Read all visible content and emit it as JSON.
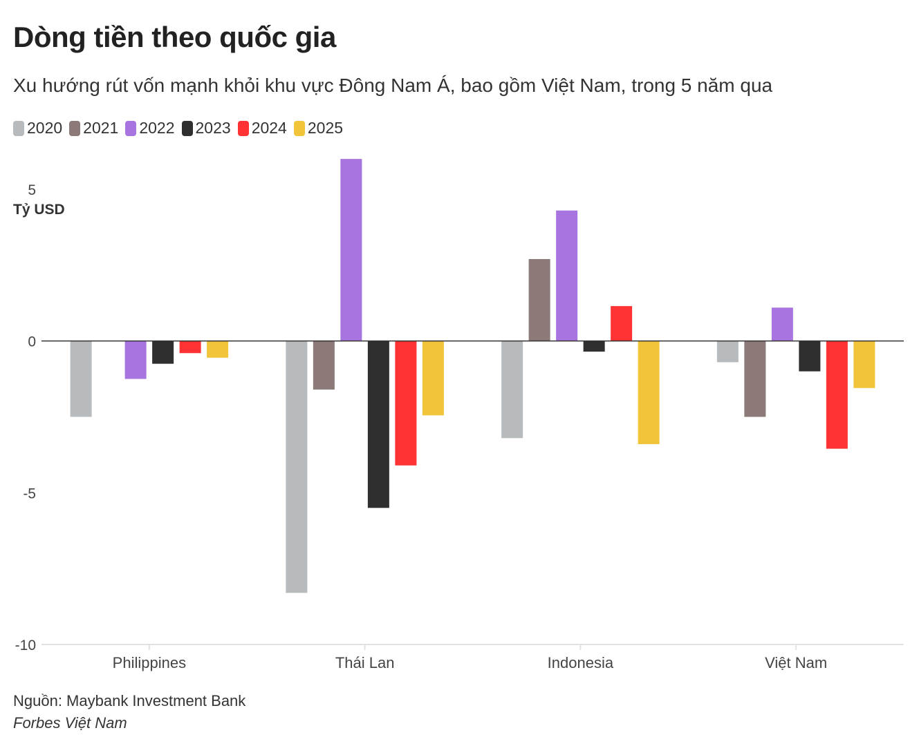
{
  "header": {
    "title": "Dòng tiền theo quốc gia",
    "subtitle": "Xu hướng rút vốn mạnh khỏi khu vực Đông Nam Á, bao gồm Việt Nam, trong 5 năm qua"
  },
  "footer": {
    "source": "Nguồn: Maybank Investment Bank",
    "publisher": "Forbes Việt Nam"
  },
  "chart_data": {
    "type": "bar",
    "title": "Dòng tiền theo quốc gia",
    "subtitle": "Xu hướng rút vốn mạnh khỏi khu vực Đông Nam Á, bao gồm Việt Nam, trong 5 năm qua",
    "xlabel": "",
    "ylabel": "Tỷ USD",
    "ylim": [
      -10,
      5
    ],
    "yticks": [
      "5",
      "0",
      "-5",
      "-10"
    ],
    "grid": false,
    "legend_position": "top-left",
    "categories": [
      "Philippines",
      "Thái Lan",
      "Indonesia",
      "Việt Nam"
    ],
    "series": [
      {
        "name": "2020",
        "color": "#b8bbbe",
        "values": [
          -2.5,
          -8.3,
          -3.2,
          -0.7
        ]
      },
      {
        "name": "2021",
        "color": "#8b7a77",
        "values": [
          0,
          -1.6,
          2.7,
          -2.5
        ]
      },
      {
        "name": "2022",
        "color": "#a875e0",
        "values": [
          -1.25,
          6.0,
          4.3,
          1.1
        ]
      },
      {
        "name": "2023",
        "color": "#2f2f2f",
        "values": [
          -0.75,
          -5.5,
          -0.35,
          -1.0
        ]
      },
      {
        "name": "2024",
        "color": "#ff3333",
        "values": [
          -0.4,
          -4.1,
          1.15,
          -3.55
        ]
      },
      {
        "name": "2025",
        "color": "#f2c43a",
        "values": [
          -0.55,
          -2.45,
          -3.4,
          -1.55
        ]
      }
    ]
  }
}
